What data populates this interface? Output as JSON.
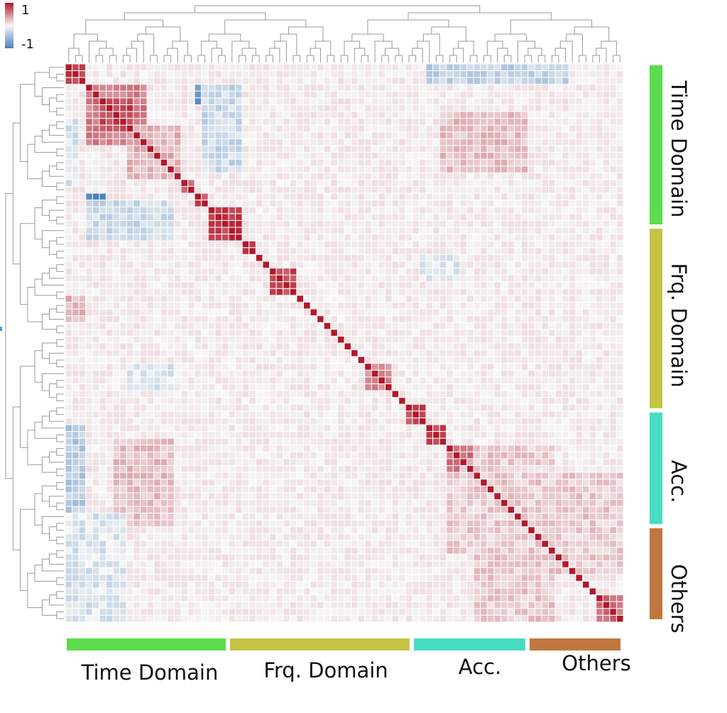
{
  "chart_data": {
    "type": "heatmap",
    "title": "",
    "description_kind": "clustered correlation matrix",
    "n_features": 82,
    "colorbar": {
      "max_label": "1",
      "min_label": "-1",
      "vmin": -1,
      "vmax": 1,
      "high_color": "#b2182b",
      "mid_color": "#f7f7f7",
      "low_color": "#2166ac"
    },
    "groups": [
      {
        "name": "Time Domain",
        "start": 0,
        "end": 24,
        "color": "#5ddc4d"
      },
      {
        "name": "Frq. Domain",
        "start": 24,
        "end": 51,
        "color": "#c6c243"
      },
      {
        "name": "Acc.",
        "start": 51,
        "end": 68,
        "color": "#48dcc0"
      },
      {
        "name": "Others",
        "start": 68,
        "end": 82,
        "color": "#c0773f"
      }
    ],
    "diagonal_value": 1,
    "blocks": [
      {
        "r": [
          0,
          3
        ],
        "c": [
          0,
          3
        ],
        "v": 0.85
      },
      {
        "r": [
          3,
          12
        ],
        "c": [
          3,
          12
        ],
        "v": 0.55
      },
      {
        "r": [
          5,
          10
        ],
        "c": [
          5,
          10
        ],
        "v": 0.8
      },
      {
        "r": [
          9,
          17
        ],
        "c": [
          9,
          17
        ],
        "v": 0.3
      },
      {
        "r": [
          17,
          19
        ],
        "c": [
          17,
          19
        ],
        "v": 0.7
      },
      {
        "r": [
          19,
          21
        ],
        "c": [
          19,
          21
        ],
        "v": 0.75
      },
      {
        "r": [
          21,
          26
        ],
        "c": [
          21,
          26
        ],
        "v": 0.85
      },
      {
        "r": [
          26,
          28
        ],
        "c": [
          26,
          28
        ],
        "v": 0.8
      },
      {
        "r": [
          30,
          34
        ],
        "c": [
          30,
          34
        ],
        "v": 0.8
      },
      {
        "r": [
          44,
          48
        ],
        "c": [
          44,
          48
        ],
        "v": 0.5
      },
      {
        "r": [
          50,
          53
        ],
        "c": [
          50,
          53
        ],
        "v": 0.8
      },
      {
        "r": [
          53,
          56
        ],
        "c": [
          53,
          56
        ],
        "v": 0.75
      },
      {
        "r": [
          56,
          60
        ],
        "c": [
          56,
          60
        ],
        "v": 0.6
      },
      {
        "r": [
          58,
          68
        ],
        "c": [
          58,
          68
        ],
        "v": 0.3
      },
      {
        "r": [
          60,
          66
        ],
        "c": [
          60,
          66
        ],
        "v": 0.45
      },
      {
        "r": [
          68,
          75
        ],
        "c": [
          68,
          82
        ],
        "v": 0.2
      },
      {
        "r": [
          78,
          82
        ],
        "c": [
          78,
          82
        ],
        "v": 0.6
      },
      {
        "r": [
          0,
          3
        ],
        "c": [
          56,
          72
        ],
        "v": -0.25
      },
      {
        "r": [
          19,
          21
        ],
        "c": [
          3,
          6
        ],
        "v": -0.7
      },
      {
        "r": [
          3,
          6
        ],
        "c": [
          19,
          21
        ],
        "v": -0.65
      },
      {
        "r": [
          20,
          26
        ],
        "c": [
          3,
          16
        ],
        "v": -0.2
      },
      {
        "r": [
          3,
          16
        ],
        "c": [
          20,
          26
        ],
        "v": -0.2
      },
      {
        "r": [
          8,
          18
        ],
        "c": [
          0,
          2
        ],
        "v": -0.15
      },
      {
        "r": [
          53,
          74
        ],
        "c": [
          0,
          3
        ],
        "v": -0.3
      },
      {
        "r": [
          0,
          3
        ],
        "c": [
          53,
          74
        ],
        "v": -0.25
      },
      {
        "r": [
          55,
          68
        ],
        "c": [
          7,
          16
        ],
        "v": 0.25
      },
      {
        "r": [
          7,
          16
        ],
        "c": [
          55,
          68
        ],
        "v": 0.25
      },
      {
        "r": [
          66,
          82
        ],
        "c": [
          0,
          9
        ],
        "v": -0.12
      },
      {
        "r": [
          60,
          72
        ],
        "c": [
          56,
          82
        ],
        "v": 0.2
      },
      {
        "r": [
          56,
          82
        ],
        "c": [
          60,
          72
        ],
        "v": 0.2
      },
      {
        "r": [
          34,
          38
        ],
        "c": [
          0,
          3
        ],
        "v": 0.3
      },
      {
        "r": [
          28,
          32
        ],
        "c": [
          52,
          58
        ],
        "v": -0.1
      },
      {
        "r": [
          44,
          48
        ],
        "c": [
          9,
          16
        ],
        "v": -0.1
      }
    ]
  }
}
